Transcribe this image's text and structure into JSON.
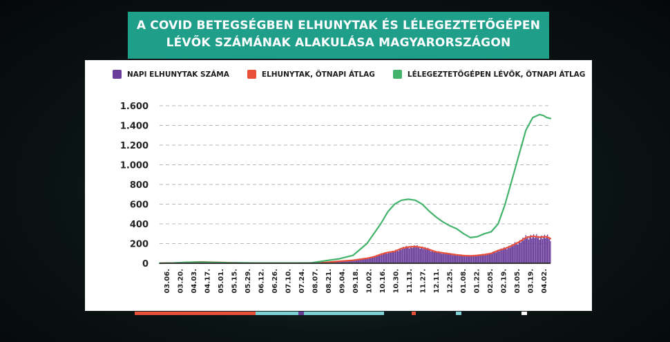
{
  "chart_data": {
    "type": "bar",
    "title_lines": [
      "A COVID BETEGSÉGBEN ELHUNYTAK ÉS LÉLEGEZTETŐGÉPEN",
      "LÉVŐK SZÁMÁNAK ALAKULÁSA MAGYARORSZÁGON"
    ],
    "xlabel": "",
    "ylabel": "",
    "ylim": [
      0,
      1600
    ],
    "grid": true,
    "legend_position": "top",
    "y_ticks": [
      0,
      200,
      400,
      600,
      800,
      1000,
      1200,
      1400,
      1600
    ],
    "y_tick_labels": [
      "0",
      "200",
      "400",
      "600",
      "800",
      "1.000",
      "1.200",
      "1.400",
      "1.600"
    ],
    "x_tick_labels": [
      "03.06.",
      "03.20.",
      "04.03.",
      "04.17.",
      "05.01.",
      "05.15.",
      "05.29.",
      "06.12.",
      "06.26.",
      "07.10.",
      "07.24.",
      "08.07.",
      "08.21.",
      "09.04.",
      "09.18.",
      "10.02.",
      "10.16.",
      "10.30.",
      "11.13.",
      "11.27.",
      "12.11.",
      "12.25.",
      "01.08.",
      "01.22.",
      "02.05.",
      "02.19.",
      "03.05.",
      "03.19.",
      "04.02."
    ],
    "x_day_range": [
      0,
      396
    ],
    "series": [
      {
        "name": "NAPI ELHUNYTAK SZÁMA",
        "kind": "bar",
        "color": "#6a3d9a",
        "x": [
          0,
          14,
          28,
          35,
          42,
          56,
          70,
          84,
          98,
          112,
          126,
          140,
          154,
          168,
          182,
          196,
          210,
          217,
          224,
          231,
          238,
          245,
          252,
          259,
          266,
          273,
          280,
          287,
          294,
          301,
          308,
          315,
          322,
          329,
          336,
          343,
          350,
          357,
          364,
          371,
          378,
          385,
          392,
          396
        ],
        "values": [
          0,
          2,
          8,
          12,
          14,
          10,
          6,
          3,
          2,
          2,
          2,
          2,
          2,
          8,
          20,
          30,
          50,
          65,
          90,
          110,
          120,
          150,
          165,
          170,
          160,
          140,
          115,
          105,
          95,
          85,
          78,
          75,
          80,
          88,
          100,
          130,
          150,
          180,
          215,
          260,
          275,
          265,
          270,
          250
        ]
      },
      {
        "name": "ELHUNYTAK, ÖTNAPI ÁTLAG",
        "kind": "line",
        "color": "#e8503a",
        "x": [
          0,
          14,
          28,
          35,
          42,
          56,
          70,
          84,
          98,
          112,
          126,
          140,
          154,
          168,
          182,
          196,
          210,
          217,
          224,
          231,
          238,
          245,
          252,
          259,
          266,
          273,
          280,
          287,
          294,
          301,
          308,
          315,
          322,
          329,
          336,
          343,
          350,
          357,
          364,
          371,
          378,
          385,
          392,
          396
        ],
        "values": [
          0,
          2,
          8,
          12,
          14,
          10,
          6,
          3,
          2,
          2,
          2,
          2,
          2,
          8,
          20,
          30,
          50,
          65,
          90,
          110,
          120,
          150,
          165,
          170,
          160,
          140,
          115,
          105,
          95,
          85,
          78,
          75,
          80,
          88,
          100,
          130,
          150,
          180,
          215,
          260,
          275,
          265,
          270,
          250
        ]
      },
      {
        "name": "LÉLEGEZTETŐGÉPEN LÉVŐK, ÖTNAPI ÁTLAG",
        "kind": "line",
        "color": "#43b36b",
        "x": [
          0,
          14,
          28,
          42,
          56,
          70,
          84,
          98,
          112,
          126,
          140,
          154,
          168,
          182,
          196,
          210,
          217,
          224,
          231,
          238,
          245,
          252,
          259,
          266,
          273,
          280,
          287,
          294,
          301,
          308,
          315,
          322,
          329,
          336,
          343,
          350,
          357,
          364,
          371,
          378,
          385,
          389,
          392,
          396
        ],
        "values": [
          0,
          3,
          10,
          12,
          8,
          5,
          4,
          3,
          3,
          3,
          3,
          5,
          25,
          45,
          80,
          200,
          300,
          400,
          520,
          600,
          640,
          650,
          640,
          600,
          530,
          470,
          420,
          380,
          350,
          300,
          260,
          270,
          300,
          320,
          400,
          600,
          850,
          1100,
          1350,
          1480,
          1510,
          1500,
          1480,
          1470
        ]
      }
    ]
  }
}
